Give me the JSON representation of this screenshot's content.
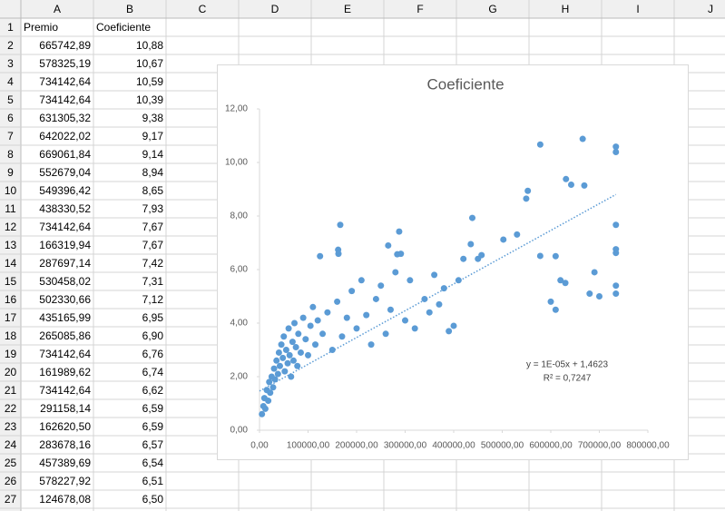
{
  "sheet": {
    "columns": [
      "A",
      "B",
      "C",
      "D",
      "E",
      "F",
      "G",
      "H",
      "I",
      "J"
    ],
    "row_numbers": [
      1,
      2,
      3,
      4,
      5,
      6,
      7,
      8,
      9,
      10,
      11,
      12,
      13,
      14,
      15,
      16,
      17,
      18,
      19,
      20,
      21,
      22,
      23,
      24,
      25,
      26,
      27
    ],
    "rows": [
      [
        "Premio",
        "Coeficiente"
      ],
      [
        "665742,89",
        "10,88"
      ],
      [
        "578325,19",
        "10,67"
      ],
      [
        "734142,64",
        "10,59"
      ],
      [
        "734142,64",
        "10,39"
      ],
      [
        "631305,32",
        "9,38"
      ],
      [
        "642022,02",
        "9,17"
      ],
      [
        "669061,84",
        "9,14"
      ],
      [
        "552679,04",
        "8,94"
      ],
      [
        "549396,42",
        "8,65"
      ],
      [
        "438330,52",
        "7,93"
      ],
      [
        "734142,64",
        "7,67"
      ],
      [
        "166319,94",
        "7,67"
      ],
      [
        "287697,14",
        "7,42"
      ],
      [
        "530458,02",
        "7,31"
      ],
      [
        "502330,66",
        "7,12"
      ],
      [
        "435165,99",
        "6,95"
      ],
      [
        "265085,86",
        "6,90"
      ],
      [
        "734142,64",
        "6,76"
      ],
      [
        "161989,62",
        "6,74"
      ],
      [
        "734142,64",
        "6,62"
      ],
      [
        "291158,14",
        "6,59"
      ],
      [
        "162620,50",
        "6,59"
      ],
      [
        "283678,16",
        "6,57"
      ],
      [
        "457389,69",
        "6,54"
      ],
      [
        "578227,92",
        "6,51"
      ],
      [
        "124678,08",
        "6,50"
      ]
    ]
  },
  "chart_data": {
    "type": "scatter",
    "title": "Coeficiente",
    "color": "#5b9bd5",
    "x": [
      665742.89,
      578325.19,
      734142.64,
      734142.64,
      631305.32,
      642022.02,
      669061.84,
      552679.04,
      549396.42,
      438330.52,
      734142.64,
      166319.94,
      287697.14,
      530458.02,
      502330.66,
      435165.99,
      265085.86,
      734142.64,
      161989.62,
      734142.64,
      291158.14,
      162620.5,
      283678.16,
      457389.69,
      578227.92,
      124678.08,
      5000,
      8000,
      10000,
      12000,
      15000,
      18000,
      20000,
      22000,
      25000,
      28000,
      30000,
      32000,
      35000,
      38000,
      40000,
      42000,
      45000,
      48000,
      50000,
      52000,
      55000,
      58000,
      60000,
      62000,
      65000,
      68000,
      70000,
      72000,
      75000,
      78000,
      80000,
      85000,
      90000,
      95000,
      100000,
      105000,
      110000,
      115000,
      120000,
      130000,
      140000,
      150000,
      160000,
      170000,
      180000,
      190000,
      200000,
      210000,
      220000,
      230000,
      240000,
      250000,
      260000,
      270000,
      280000,
      300000,
      310000,
      320000,
      340000,
      350000,
      360000,
      370000,
      380000,
      400000,
      410000,
      420000,
      450000,
      390000,
      600000,
      610000,
      620000,
      630000,
      680000,
      700000,
      690000,
      734142.64,
      734142.64,
      610000
    ],
    "values": [
      10.88,
      10.67,
      10.59,
      10.39,
      9.38,
      9.17,
      9.14,
      8.94,
      8.65,
      7.93,
      7.67,
      7.67,
      7.42,
      7.31,
      7.12,
      6.95,
      6.9,
      6.76,
      6.74,
      6.62,
      6.59,
      6.59,
      6.57,
      6.54,
      6.51,
      6.5,
      0.6,
      0.9,
      1.2,
      0.8,
      1.5,
      1.1,
      1.8,
      1.4,
      2.0,
      1.6,
      2.3,
      1.9,
      2.6,
      2.1,
      2.9,
      2.4,
      3.2,
      2.7,
      3.5,
      2.2,
      3.0,
      2.5,
      3.8,
      2.8,
      2.0,
      3.3,
      2.6,
      4.0,
      3.1,
      2.4,
      3.6,
      2.9,
      4.2,
      3.4,
      2.8,
      3.9,
      4.6,
      3.2,
      4.1,
      3.6,
      4.4,
      3.0,
      4.8,
      3.5,
      4.2,
      5.2,
      3.8,
      5.6,
      4.3,
      3.2,
      4.9,
      5.4,
      3.6,
      4.5,
      5.9,
      4.1,
      5.6,
      3.8,
      4.9,
      4.4,
      5.8,
      4.7,
      5.3,
      3.9,
      5.6,
      6.4,
      6.4,
      3.7,
      4.8,
      4.5,
      5.6,
      5.5,
      5.1,
      5.0,
      5.9,
      5.4,
      5.1,
      6.5
    ],
    "xlim": [
      0,
      800000
    ],
    "xticks": [
      {
        "value": 0,
        "label": "0,00"
      },
      {
        "value": 100000,
        "label": "100000,00"
      },
      {
        "value": 200000,
        "label": "200000,00"
      },
      {
        "value": 300000,
        "label": "300000,00"
      },
      {
        "value": 400000,
        "label": "400000,00"
      },
      {
        "value": 500000,
        "label": "500000,00"
      },
      {
        "value": 600000,
        "label": "600000,00"
      },
      {
        "value": 700000,
        "label": "700000,00"
      },
      {
        "value": 800000,
        "label": "800000,00"
      }
    ],
    "ylim": [
      0,
      12
    ],
    "yticks": [
      {
        "value": 0,
        "label": "0,00"
      },
      {
        "value": 2,
        "label": "2,00"
      },
      {
        "value": 4,
        "label": "4,00"
      },
      {
        "value": 6,
        "label": "6,00"
      },
      {
        "value": 8,
        "label": "8,00"
      },
      {
        "value": 10,
        "label": "10,00"
      },
      {
        "value": 12,
        "label": "12,00"
      }
    ],
    "grid": false,
    "trendline": {
      "slope": 1e-05,
      "intercept": 1.4623,
      "x_end": 734142.64,
      "equation": "y = 1E-05x + 1,4623",
      "r2": "R² = 0,7247"
    }
  }
}
